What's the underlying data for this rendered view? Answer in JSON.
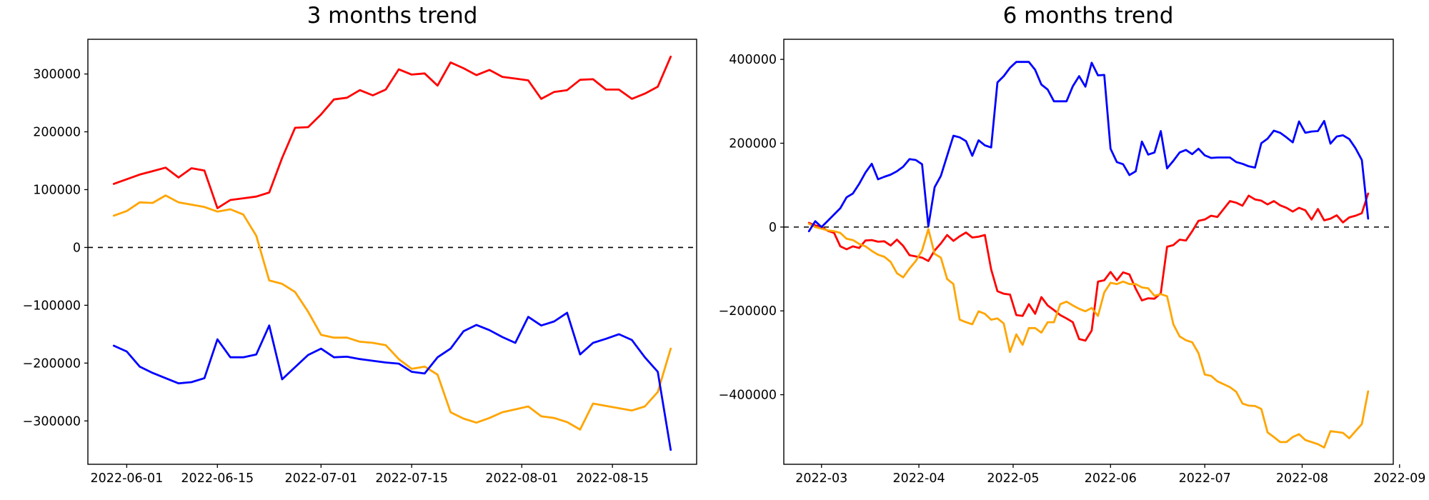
{
  "figure": {
    "background": "#ffffff",
    "frame_color": "#000000",
    "zero_line_color": "#000000"
  },
  "chart_data": [
    {
      "type": "line",
      "title": "3 months trend",
      "xlabel": "",
      "ylabel": "",
      "grid": false,
      "legend": null,
      "zero_line": true,
      "x_start": "2022-05-30",
      "x_step_days": 2,
      "x_pad_days": 4,
      "ylim": [
        -375000,
        360000
      ],
      "yticks": [
        {
          "v": 300000,
          "label": "300000"
        },
        {
          "v": 200000,
          "label": "200000"
        },
        {
          "v": 100000,
          "label": "100000"
        },
        {
          "v": 0,
          "label": "0"
        },
        {
          "v": -100000,
          "label": "−100000"
        },
        {
          "v": -200000,
          "label": "−200000"
        },
        {
          "v": -300000,
          "label": "−300000"
        }
      ],
      "xticks": [
        {
          "d": "2022-06-01",
          "label": "2022-06-01"
        },
        {
          "d": "2022-06-15",
          "label": "2022-06-15"
        },
        {
          "d": "2022-07-01",
          "label": "2022-07-01"
        },
        {
          "d": "2022-07-15",
          "label": "2022-07-15"
        },
        {
          "d": "2022-08-01",
          "label": "2022-08-01"
        },
        {
          "d": "2022-08-15",
          "label": "2022-08-15"
        }
      ],
      "series": [
        {
          "name": "red",
          "color": "#ff0000",
          "values": [
            110000,
            118000,
            126000,
            132000,
            138000,
            121000,
            137000,
            133000,
            68000,
            82000,
            85000,
            88000,
            95000,
            155000,
            207000,
            208000,
            230000,
            256000,
            259000,
            272000,
            263000,
            273000,
            308000,
            299000,
            301000,
            280000,
            320000,
            310000,
            298000,
            307000,
            295000,
            292000,
            289000,
            257000,
            269000,
            272000,
            290000,
            291000,
            273000,
            273000,
            257000,
            266000,
            278000,
            330000
          ]
        },
        {
          "name": "orange",
          "color": "#ffa500",
          "values": [
            55000,
            63000,
            78000,
            77000,
            90000,
            78000,
            74000,
            70000,
            62000,
            66000,
            57000,
            20000,
            -57000,
            -63000,
            -77000,
            -111000,
            -151000,
            -156000,
            -156000,
            -163000,
            -165000,
            -169000,
            -193000,
            -210000,
            -206000,
            -220000,
            -285000,
            -296000,
            -303000,
            -295000,
            -285000,
            -280000,
            -275000,
            -292000,
            -295000,
            -302000,
            -315000,
            -270000,
            -274000,
            -278000,
            -282000,
            -275000,
            -250000,
            -175000
          ]
        },
        {
          "name": "blue",
          "color": "#0000ff",
          "values": [
            -170000,
            -180000,
            -206000,
            -217000,
            -226000,
            -235000,
            -233000,
            -226000,
            -159000,
            -190000,
            -190000,
            -185000,
            -135000,
            -228000,
            -207000,
            -186000,
            -175000,
            -190000,
            -189000,
            -193000,
            -196000,
            -199000,
            -201000,
            -215000,
            -218000,
            -190000,
            -175000,
            -145000,
            -134000,
            -143000,
            -155000,
            -165000,
            -120000,
            -135000,
            -128000,
            -113000,
            -185000,
            -165000,
            -158000,
            -150000,
            -160000,
            -190000,
            -215000,
            -350000
          ]
        }
      ]
    },
    {
      "type": "line",
      "title": "6 months trend",
      "xlabel": "",
      "ylabel": "",
      "grid": false,
      "legend": null,
      "zero_line": true,
      "x_start": "2022-02-25",
      "x_step_days": 2,
      "x_pad_days": 8,
      "ylim": [
        -566000,
        448000
      ],
      "yticks": [
        {
          "v": 400000,
          "label": "400000"
        },
        {
          "v": 200000,
          "label": "200000"
        },
        {
          "v": 0,
          "label": "0"
        },
        {
          "v": -200000,
          "label": "−200000"
        },
        {
          "v": -400000,
          "label": "−400000"
        }
      ],
      "xticks": [
        {
          "d": "2022-03-01",
          "label": "2022-03"
        },
        {
          "d": "2022-04-01",
          "label": "2022-04"
        },
        {
          "d": "2022-05-01",
          "label": "2022-05"
        },
        {
          "d": "2022-06-01",
          "label": "2022-06"
        },
        {
          "d": "2022-07-01",
          "label": "2022-07"
        },
        {
          "d": "2022-08-01",
          "label": "2022-08"
        },
        {
          "d": "2022-09-01",
          "label": "2022-09"
        }
      ],
      "series": [
        {
          "name": "red",
          "color": "#ff0000",
          "values": [
            10000,
            4000,
            0,
            -9000,
            -14000,
            -46000,
            -53000,
            -46000,
            -50000,
            -32000,
            -31000,
            -35000,
            -34000,
            -44000,
            -30000,
            -45000,
            -67000,
            -70000,
            -73000,
            -81000,
            -56000,
            -39000,
            -19000,
            -33000,
            -22000,
            -13000,
            -25000,
            -23000,
            -19000,
            -101000,
            -153000,
            -159000,
            -161000,
            -210000,
            -212000,
            -184000,
            -207000,
            -167000,
            -187000,
            -198000,
            -210000,
            -218000,
            -227000,
            -267000,
            -271000,
            -247000,
            -130000,
            -127000,
            -107000,
            -127000,
            -108000,
            -113000,
            -147000,
            -175000,
            -170000,
            -171000,
            -158000,
            -47000,
            -43000,
            -30000,
            -32000,
            -10000,
            15000,
            18000,
            27000,
            24000,
            43000,
            62000,
            58000,
            51000,
            75000,
            66000,
            63000,
            54000,
            62000,
            52000,
            46000,
            37000,
            46000,
            40000,
            18000,
            43000,
            16000,
            20000,
            28000,
            11000,
            23000,
            27000,
            33000,
            80000
          ]
        },
        {
          "name": "orange",
          "color": "#ffa500",
          "values": [
            8000,
            0,
            -4000,
            -8000,
            -10000,
            -14000,
            -28000,
            -31000,
            -40000,
            -46000,
            -57000,
            -66000,
            -71000,
            -83000,
            -110000,
            -120000,
            -99000,
            -81000,
            -56000,
            -5000,
            -64000,
            -73000,
            -124000,
            -136000,
            -221000,
            -227000,
            -232000,
            -201000,
            -207000,
            -221000,
            -218000,
            -230000,
            -298000,
            -256000,
            -281000,
            -241000,
            -241000,
            -252000,
            -227000,
            -227000,
            -184000,
            -178000,
            -187000,
            -195000,
            -201000,
            -193000,
            -212000,
            -156000,
            -133000,
            -136000,
            -130000,
            -136000,
            -136000,
            -144000,
            -146000,
            -164000,
            -160000,
            -165000,
            -232000,
            -261000,
            -270000,
            -275000,
            -301000,
            -352000,
            -355000,
            -368000,
            -375000,
            -382000,
            -393000,
            -421000,
            -426000,
            -427000,
            -434000,
            -490000,
            -501000,
            -513000,
            -513000,
            -501000,
            -494000,
            -508000,
            -513000,
            -518000,
            -526000,
            -487000,
            -489000,
            -491000,
            -504000,
            -487000,
            -470000,
            -392000
          ]
        },
        {
          "name": "blue",
          "color": "#0000ff",
          "values": [
            -10000,
            14000,
            0,
            15000,
            30000,
            45000,
            71000,
            80000,
            103000,
            130000,
            151000,
            114000,
            120000,
            125000,
            133000,
            144000,
            162000,
            160000,
            150000,
            2000,
            95000,
            122000,
            170000,
            218000,
            214000,
            205000,
            170000,
            207000,
            195000,
            190000,
            345000,
            360000,
            380000,
            394000,
            394000,
            394000,
            375000,
            340000,
            328000,
            300000,
            300000,
            300000,
            336000,
            360000,
            335000,
            392000,
            362000,
            363000,
            187000,
            155000,
            150000,
            124000,
            133000,
            204000,
            173000,
            178000,
            229000,
            140000,
            158000,
            178000,
            184000,
            174000,
            187000,
            171000,
            165000,
            166000,
            166000,
            166000,
            155000,
            151000,
            145000,
            142000,
            200000,
            211000,
            230000,
            225000,
            214000,
            202000,
            252000,
            225000,
            228000,
            229000,
            253000,
            199000,
            216000,
            219000,
            210000,
            188000,
            160000,
            20000
          ]
        }
      ]
    }
  ]
}
